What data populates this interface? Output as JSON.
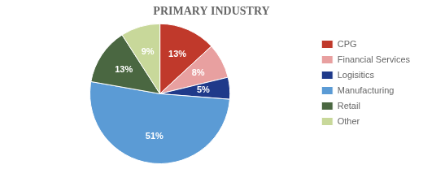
{
  "chart_data": {
    "type": "pie",
    "title": "PRIMARY INDUSTRY",
    "categories": [
      "CPG",
      "Financial Services",
      "Logisitics",
      "Manufacturing",
      "Retail",
      "Other"
    ],
    "values": [
      13,
      8,
      5,
      51,
      13,
      9
    ],
    "value_labels": [
      "13%",
      "8%",
      "5%",
      "51%",
      "13%",
      "9%"
    ],
    "colors": [
      "#c0392b",
      "#e8a0a0",
      "#1f3a8a",
      "#5b9bd5",
      "#4a6741",
      "#c8d89a"
    ],
    "data_labels": true,
    "legend": "right"
  }
}
